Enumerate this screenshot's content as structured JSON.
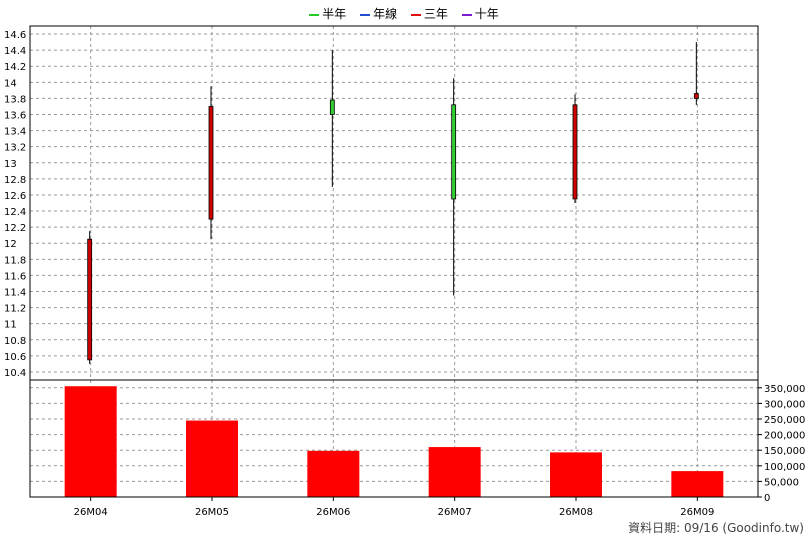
{
  "legend": [
    {
      "label": "半年",
      "color": "#22cc22"
    },
    {
      "label": "年線",
      "color": "#1f4fd0"
    },
    {
      "label": "三年",
      "color": "#dd1111"
    },
    {
      "label": "十年",
      "color": "#7a1fd0"
    }
  ],
  "footer": "資料日期: 09/16 (Goodinfo.tw)",
  "chart_data": {
    "type": "candlestick+bar",
    "categories": [
      "26M04",
      "26M05",
      "26M06",
      "26M07",
      "26M08",
      "26M09"
    ],
    "price": {
      "ylim": [
        10.3,
        14.7
      ],
      "yticks": [
        "10.4",
        "10.6",
        "10.8",
        "11",
        "11.2",
        "11.4",
        "11.6",
        "11.8",
        "12",
        "12.2",
        "12.4",
        "12.6",
        "12.8",
        "13",
        "13.2",
        "13.4",
        "13.6",
        "13.8",
        "14",
        "14.2",
        "14.4",
        "14.6"
      ],
      "candles": [
        {
          "open": 10.55,
          "close": 12.05,
          "high": 12.15,
          "low": 10.5,
          "color": "#cc0000"
        },
        {
          "open": 12.3,
          "close": 13.7,
          "high": 13.95,
          "low": 12.05,
          "color": "#cc0000"
        },
        {
          "open": 13.78,
          "close": 13.6,
          "high": 14.4,
          "low": 12.7,
          "color": "#33cc33"
        },
        {
          "open": 13.72,
          "close": 12.55,
          "high": 14.05,
          "low": 11.35,
          "color": "#33cc33"
        },
        {
          "open": 12.55,
          "close": 13.72,
          "high": 13.85,
          "low": 12.5,
          "color": "#cc0000"
        },
        {
          "open": 13.8,
          "close": 13.86,
          "high": 14.5,
          "low": 13.72,
          "color": "#cc0000"
        }
      ]
    },
    "volume": {
      "ylim": [
        0,
        375000
      ],
      "yticks": [
        "0",
        "50,000",
        "100,000",
        "150,000",
        "200,000",
        "250,000",
        "300,000",
        "350,000"
      ],
      "values": [
        355000,
        245000,
        148000,
        160000,
        143000,
        83000
      ],
      "color": "#ff0000"
    }
  }
}
